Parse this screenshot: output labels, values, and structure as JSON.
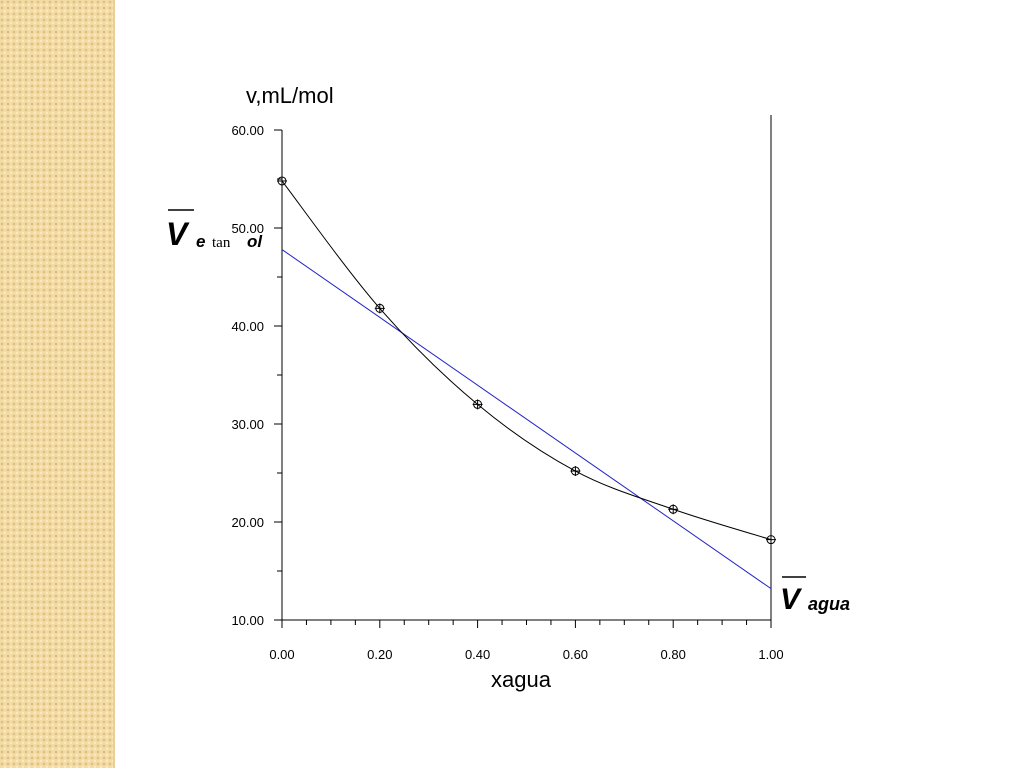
{
  "chart_data": {
    "type": "line",
    "title": "",
    "xlabel": "xagua",
    "ylabel": "v,mL/mol",
    "xlim": [
      0,
      1
    ],
    "ylim": [
      10,
      60
    ],
    "x_ticks": [
      "0.00",
      "0.20",
      "0.40",
      "0.60",
      "0.80",
      "1.00"
    ],
    "y_ticks": [
      "10.00",
      "20.00",
      "30.00",
      "40.00",
      "50.00",
      "60.00"
    ],
    "series": [
      {
        "color": "#000000",
        "marker": "circle-cross",
        "x": [
          0.0,
          0.2,
          0.4,
          0.6,
          0.8,
          1.0
        ],
        "y": [
          54.8,
          41.8,
          32.0,
          25.2,
          21.3,
          18.2
        ]
      },
      {
        "color": "#2424c8",
        "kind": "tangent-line",
        "x": [
          0.0,
          1.0
        ],
        "y": [
          47.8,
          13.2
        ]
      }
    ],
    "annotations": {
      "v_etanol": {
        "v": "V",
        "sub_a": "e",
        "sub_b": "tan",
        "sub_c": "ol"
      },
      "v_agua": {
        "v": "V",
        "sub": "agua"
      }
    },
    "vertical_line_x": 1.0
  }
}
